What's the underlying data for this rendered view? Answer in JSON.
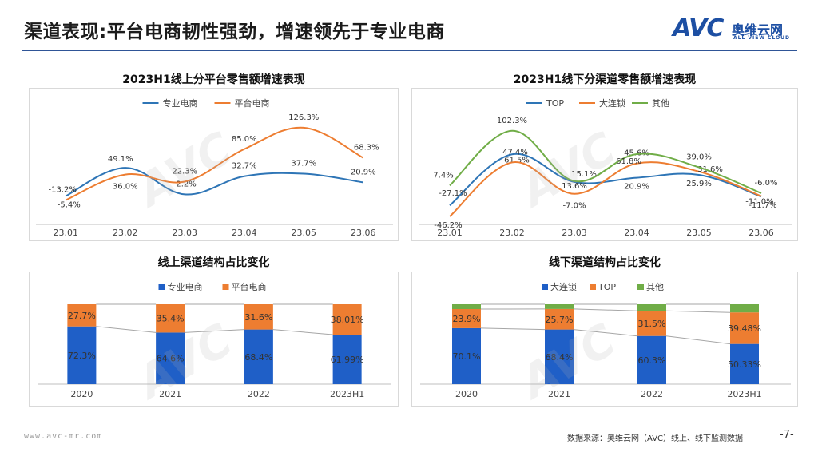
{
  "header": {
    "title": "渠道表现:平台电商韧性强劲，增速领先于专业电商",
    "logo_main": "AVC",
    "logo_cn": "奥维云网",
    "logo_en": "ALL VIEW CLOUD"
  },
  "watermark": "AVC",
  "footer": {
    "website": "www.avc-mr.com",
    "source": "数据来源：奥维云网（AVC）线上、线下监测数据",
    "page": "-7-"
  },
  "colors": {
    "blue": "#2e75b6",
    "orange": "#ed7d31",
    "green": "#70ad47",
    "barBlue": "#1f5fc7",
    "barOrange": "#ed7d31",
    "barGreen": "#70ad47"
  },
  "chart_data": [
    {
      "id": "online-growth",
      "type": "line",
      "title": "2023H1线上分平台零售额增速表现",
      "categories": [
        "23.01",
        "23.02",
        "23.03",
        "23.04",
        "23.05",
        "23.06"
      ],
      "ylim": [
        -60,
        140
      ],
      "series": [
        {
          "name": "专业电商",
          "color": "#2e75b6",
          "values": [
            -5.4,
            49.1,
            -2.2,
            32.7,
            37.7,
            20.9
          ],
          "labels": [
            "-5.4%",
            "49.1%",
            "-2.2%",
            "32.7%",
            "37.7%",
            "20.9%"
          ]
        },
        {
          "name": "平台电商",
          "color": "#ed7d31",
          "values": [
            -13.2,
            36.0,
            22.3,
            85.0,
            126.3,
            68.3
          ],
          "labels": [
            "-13.2%",
            "36.0%",
            "22.3%",
            "85.0%",
            "126.3%",
            "68.3%"
          ]
        }
      ]
    },
    {
      "id": "offline-growth",
      "type": "line",
      "title": "2023H1线下分渠道零售额增速表现",
      "categories": [
        "23.01",
        "23.02",
        "23.03",
        "23.04",
        "23.05",
        "23.06"
      ],
      "ylim": [
        -60,
        120
      ],
      "series": [
        {
          "name": "TOP",
          "color": "#2e75b6",
          "values": [
            -27.1,
            61.5,
            13.6,
            20.9,
            25.9,
            -11.7
          ],
          "labels": [
            "-27.1%",
            "61.5%",
            "13.6%",
            "20.9%",
            "25.9%",
            "-11.7%"
          ]
        },
        {
          "name": "大连锁",
          "color": "#ed7d31",
          "values": [
            -46.2,
            47.4,
            -7.0,
            45.6,
            31.6,
            -11.0
          ],
          "labels": [
            "-46.2%",
            "47.4%",
            "-7.0%",
            "45.6%",
            "31.6%",
            "-11.0%"
          ]
        },
        {
          "name": "其他",
          "color": "#70ad47",
          "values": [
            7.4,
            102.3,
            15.1,
            61.8,
            39.0,
            -6.0
          ],
          "labels": [
            "7.4%",
            "102.3%",
            "15.1%",
            "61.8%",
            "39.0%",
            "-6.0%"
          ]
        }
      ]
    },
    {
      "id": "online-structure",
      "type": "bar",
      "stacked": true,
      "title": "线上渠道结构占比变化",
      "categories": [
        "2020",
        "2021",
        "2022",
        "2023H1"
      ],
      "series": [
        {
          "name": "专业电商",
          "color": "#1f5fc7",
          "values": [
            72.3,
            64.6,
            68.4,
            61.99
          ],
          "labels": [
            "72.3%",
            "64.6%",
            "68.4%",
            "61.99%"
          ]
        },
        {
          "name": "平台电商",
          "color": "#ed7d31",
          "values": [
            27.7,
            35.4,
            31.6,
            38.01
          ],
          "labels": [
            "27.7%",
            "35.4%",
            "31.6%",
            "38.01%"
          ]
        }
      ]
    },
    {
      "id": "offline-structure",
      "type": "bar",
      "stacked": true,
      "title": "线下渠道结构占比变化",
      "categories": [
        "2020",
        "2021",
        "2022",
        "2023H1"
      ],
      "series": [
        {
          "name": "大连锁",
          "color": "#1f5fc7",
          "values": [
            70.1,
            68.4,
            60.3,
            50.33
          ],
          "labels": [
            "70.1%",
            "68.4%",
            "60.3%",
            "50.33%"
          ]
        },
        {
          "name": "TOP",
          "color": "#ed7d31",
          "values": [
            23.9,
            25.7,
            31.5,
            39.48
          ],
          "labels": [
            "23.9%",
            "25.7%",
            "31.5%",
            "39.48%"
          ]
        },
        {
          "name": "其他",
          "color": "#70ad47",
          "values": [
            6.0,
            5.9,
            8.2,
            10.19
          ],
          "labels": []
        }
      ]
    }
  ]
}
